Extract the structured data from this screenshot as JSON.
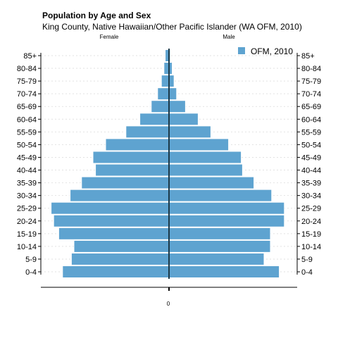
{
  "chart_data": {
    "type": "bar",
    "orientation": "horizontal",
    "layout": "population-pyramid",
    "title": "Population by Age and Sex",
    "subtitle": "King County, Native Hawaiian/Other Pacific Islander (WA OFM, 2010)",
    "left_label": "Female",
    "right_label": "Male",
    "categories": [
      "0-4",
      "5-9",
      "10-14",
      "15-19",
      "20-24",
      "25-29",
      "30-34",
      "35-39",
      "40-44",
      "45-49",
      "50-54",
      "55-59",
      "60-64",
      "65-69",
      "70-74",
      "75-79",
      "80-84",
      "85+"
    ],
    "series": [
      {
        "name": "Female",
        "values": [
          840,
          770,
          750,
          870,
          910,
          930,
          780,
          690,
          580,
          600,
          500,
          340,
          230,
          140,
          90,
          60,
          40,
          30
        ]
      },
      {
        "name": "Male",
        "values": [
          870,
          750,
          800,
          800,
          910,
          910,
          810,
          670,
          580,
          570,
          470,
          330,
          230,
          130,
          60,
          40,
          25,
          10
        ]
      }
    ],
    "legend": {
      "entries": [
        "OFM, 2010"
      ],
      "position": "top-right"
    },
    "x_ticks": [
      "0"
    ],
    "xlim": [
      -1000,
      1000
    ],
    "grid": true,
    "colors": {
      "bar": "#5ea3d0",
      "bar_stroke": "#ffffff",
      "axis": "#000000"
    }
  }
}
